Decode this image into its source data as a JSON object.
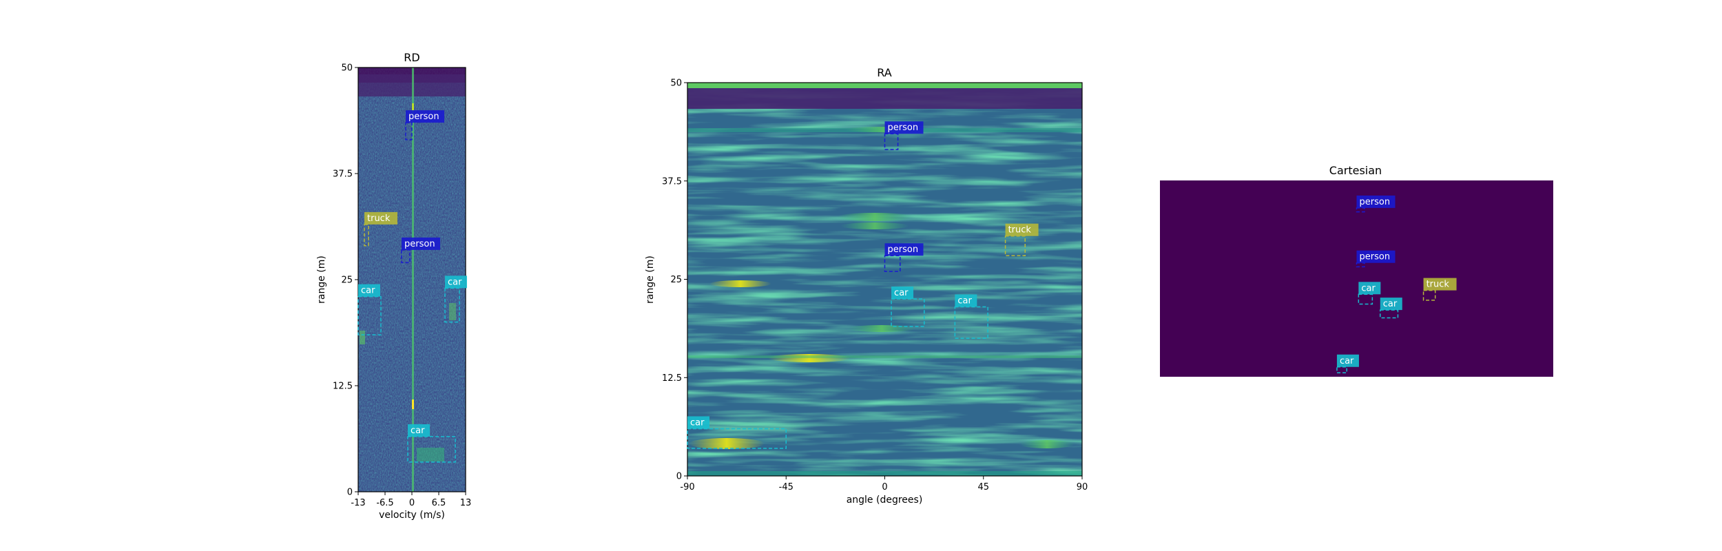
{
  "colors": {
    "background": "#ffffff",
    "frame": "#000000",
    "viridis_dark": "#440154",
    "person_box": "#1a1ad0",
    "car_box": "#17becf",
    "truck_box": "#b5b83a",
    "label_text": "#ffffff"
  },
  "chart_data": [
    {
      "id": "rd",
      "type": "heatmap",
      "title": "RD",
      "xlabel": "velocity (m/s)",
      "ylabel": "range (m)",
      "xlim": [
        -13,
        13
      ],
      "ylim": [
        0,
        50
      ],
      "xticks": [
        "-13",
        "-6.5",
        "0",
        "6.5",
        "13"
      ],
      "xtick_values": [
        -13,
        -6.5,
        0,
        6.5,
        13
      ],
      "yticks": [
        "0",
        "12.5",
        "25",
        "37.5",
        "50"
      ],
      "ytick_values": [
        0,
        12.5,
        25,
        37.5,
        50
      ],
      "colormap": "viridis",
      "annotations": [
        {
          "label": "person",
          "x0": -1.5,
          "x1": 0,
          "y0": 41.5,
          "y1": 43.5
        },
        {
          "label": "truck",
          "x0": -11.5,
          "x1": -10.5,
          "y0": 29.0,
          "y1": 31.5
        },
        {
          "label": "person",
          "x0": -2.5,
          "x1": -0.5,
          "y0": 27.0,
          "y1": 28.5
        },
        {
          "label": "car",
          "x0": -13,
          "x1": -7.5,
          "y0": 18.5,
          "y1": 23.0
        },
        {
          "label": "car",
          "x0": 8,
          "x1": 11.5,
          "y0": 20.0,
          "y1": 24.0
        },
        {
          "label": "car",
          "x0": -1,
          "x1": 10.5,
          "y0": 3.5,
          "y1": 6.5
        }
      ]
    },
    {
      "id": "ra",
      "type": "heatmap",
      "title": "RA",
      "xlabel": "angle (degrees)",
      "ylabel": "range (m)",
      "xlim": [
        -90,
        90
      ],
      "ylim": [
        0,
        50
      ],
      "xticks": [
        "-90",
        "-45",
        "0",
        "45",
        "90"
      ],
      "xtick_values": [
        -90,
        -45,
        0,
        45,
        90
      ],
      "yticks": [
        "0",
        "12.5",
        "25",
        "37.5",
        "50"
      ],
      "ytick_values": [
        0,
        12.5,
        25,
        37.5,
        50
      ],
      "colormap": "viridis",
      "annotations": [
        {
          "label": "person",
          "x0": 0,
          "x1": 6,
          "y0": 41.5,
          "y1": 43.5
        },
        {
          "label": "truck",
          "x0": 55,
          "x1": 64,
          "y0": 28.0,
          "y1": 30.5
        },
        {
          "label": "person",
          "x0": 0,
          "x1": 7,
          "y0": 26.0,
          "y1": 28.0
        },
        {
          "label": "car",
          "x0": 3,
          "x1": 18,
          "y0": 19.0,
          "y1": 22.5
        },
        {
          "label": "car",
          "x0": 32,
          "x1": 47,
          "y0": 17.5,
          "y1": 21.5
        },
        {
          "label": "car",
          "x0": -90,
          "x1": -45,
          "y0": 3.5,
          "y1": 6.0
        }
      ]
    },
    {
      "id": "cartesian",
      "type": "heatmap",
      "title": "Cartesian",
      "colormap": "viridis",
      "xlim": [
        -50,
        50
      ],
      "ylim": [
        0,
        50
      ],
      "annotations": [
        {
          "label": "person",
          "x0": 0,
          "x1": 2,
          "y0": 42.0,
          "y1": 43.0
        },
        {
          "label": "person",
          "x0": 0,
          "x1": 2,
          "y0": 28.0,
          "y1": 29.0
        },
        {
          "label": "truck",
          "x0": 17,
          "x1": 20,
          "y0": 19.5,
          "y1": 22.0
        },
        {
          "label": "car",
          "x0": 0.5,
          "x1": 4,
          "y0": 18.5,
          "y1": 21.0
        },
        {
          "label": "car",
          "x0": 6,
          "x1": 10.5,
          "y0": 15.0,
          "y1": 17.0
        },
        {
          "label": "car",
          "x0": -5,
          "x1": -2.5,
          "y0": 1.0,
          "y1": 2.5
        }
      ]
    }
  ]
}
